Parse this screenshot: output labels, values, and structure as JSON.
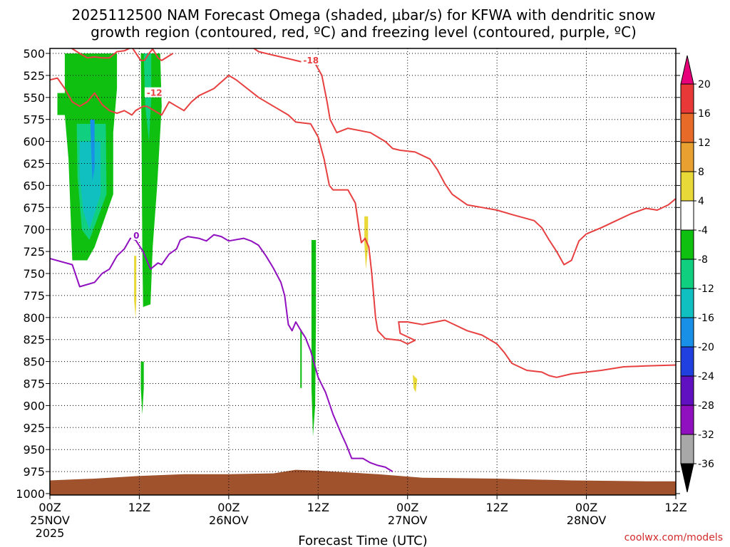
{
  "chart_data": {
    "type": "time-height",
    "title_lines": [
      "2025112500 NAM Forecast Omega (shaded, μbar/s) for KFWA with dendritic snow",
      "growth region (contoured, red, ºC) and freezing level (contoured, purple, ºC)"
    ],
    "xlabel": "Forecast Time (UTC)",
    "ylabel": "",
    "credit": "coolwx.com/models",
    "x_range_hours": [
      0,
      84
    ],
    "y_range_hpa": [
      500,
      1000
    ],
    "y_ticks": [
      500,
      525,
      550,
      575,
      600,
      625,
      650,
      675,
      700,
      725,
      750,
      775,
      800,
      825,
      850,
      875,
      900,
      925,
      950,
      975,
      1000
    ],
    "x_ticks": [
      {
        "hour": 0,
        "line1": "00Z",
        "line2": "25NOV",
        "line3": "2025"
      },
      {
        "hour": 12,
        "line1": "12Z",
        "line2": "",
        "line3": ""
      },
      {
        "hour": 24,
        "line1": "00Z",
        "line2": "26NOV",
        "line3": ""
      },
      {
        "hour": 36,
        "line1": "12Z",
        "line2": "",
        "line3": ""
      },
      {
        "hour": 48,
        "line1": "00Z",
        "line2": "27NOV",
        "line3": ""
      },
      {
        "hour": 60,
        "line1": "12Z",
        "line2": "",
        "line3": ""
      },
      {
        "hour": 72,
        "line1": "00Z",
        "line2": "28NOV",
        "line3": ""
      },
      {
        "hour": 84,
        "line1": "12Z",
        "line2": "",
        "line3": ""
      }
    ],
    "colorbar": {
      "label_values": [
        20,
        16,
        12,
        8,
        4,
        -4,
        -8,
        -12,
        -16,
        -20,
        -24,
        -28,
        -32,
        -36
      ],
      "colors": [
        "#e8007a",
        "#e83838",
        "#e86a28",
        "#e8a030",
        "#e8d838",
        "#ffffff",
        "#10c010",
        "#10d080",
        "#10c0c0",
        "#1890e8",
        "#2040e0",
        "#6010c0",
        "#9010c0",
        "#a8a8a8",
        "#000000"
      ]
    },
    "omega_shading": [
      {
        "level": -4,
        "color": "#10c010",
        "polygon": [
          [
            2.0,
            500
          ],
          [
            9.0,
            500
          ],
          [
            9.0,
            540
          ],
          [
            8.5,
            590
          ],
          [
            8.5,
            660
          ],
          [
            6.0,
            720
          ],
          [
            5.0,
            735
          ],
          [
            3.0,
            735
          ],
          [
            2.5,
            620
          ],
          [
            2.0,
            570
          ],
          [
            1.0,
            570
          ],
          [
            1.0,
            545
          ],
          [
            2.0,
            545
          ]
        ]
      },
      {
        "level": -8,
        "color": "#10d080",
        "polygon": [
          [
            3.6,
            580
          ],
          [
            7.5,
            580
          ],
          [
            7.6,
            660
          ],
          [
            5.3,
            712
          ],
          [
            4.3,
            700
          ],
          [
            3.7,
            640
          ]
        ]
      },
      {
        "level": -12,
        "color": "#10c0c0",
        "polygon": [
          [
            4.0,
            600
          ],
          [
            6.8,
            600
          ],
          [
            6.8,
            660
          ],
          [
            5.3,
            700
          ],
          [
            4.5,
            680
          ],
          [
            4.0,
            640
          ]
        ]
      },
      {
        "level": -16,
        "color": "#1890e8",
        "polygon": [
          [
            5.4,
            575
          ],
          [
            6.0,
            575
          ],
          [
            6.0,
            630
          ],
          [
            5.7,
            645
          ]
        ]
      },
      {
        "level": -4,
        "color": "#10c010",
        "polygon": [
          [
            12.2,
            500
          ],
          [
            14.8,
            500
          ],
          [
            15.0,
            560
          ],
          [
            14.4,
            650
          ],
          [
            13.8,
            720
          ],
          [
            13.5,
            785
          ],
          [
            12.5,
            788
          ],
          [
            12.4,
            720
          ],
          [
            12.3,
            600
          ]
        ]
      },
      {
        "level": -8,
        "color": "#10d080",
        "polygon": [
          [
            12.6,
            500
          ],
          [
            13.6,
            500
          ],
          [
            13.6,
            550
          ],
          [
            13.3,
            600
          ],
          [
            12.8,
            560
          ]
        ]
      },
      {
        "level": -4,
        "color": "#10c010",
        "polygon": [
          [
            12.2,
            850
          ],
          [
            12.6,
            850
          ],
          [
            12.6,
            880
          ],
          [
            12.4,
            910
          ],
          [
            12.2,
            880
          ]
        ]
      },
      {
        "level": -4,
        "color": "#10c010",
        "polygon": [
          [
            33.6,
            814
          ],
          [
            33.8,
            814
          ],
          [
            33.8,
            880
          ],
          [
            33.6,
            880
          ]
        ]
      },
      {
        "level": -4,
        "color": "#10c010",
        "polygon": [
          [
            35.1,
            712
          ],
          [
            35.7,
            712
          ],
          [
            35.7,
            800
          ],
          [
            35.6,
            900
          ],
          [
            35.3,
            935
          ],
          [
            35.1,
            880
          ]
        ]
      },
      {
        "level": 4,
        "color": "#e8d838",
        "polygon": [
          [
            11.3,
            730
          ],
          [
            11.6,
            730
          ],
          [
            11.6,
            780
          ],
          [
            11.5,
            800
          ],
          [
            11.3,
            780
          ]
        ]
      },
      {
        "level": 4,
        "color": "#e8d838",
        "polygon": [
          [
            42.2,
            685
          ],
          [
            42.7,
            685
          ],
          [
            42.7,
            720
          ],
          [
            42.4,
            745
          ],
          [
            42.2,
            715
          ]
        ]
      },
      {
        "level": 4,
        "color": "#e8d838",
        "polygon": [
          [
            48.7,
            865
          ],
          [
            49.3,
            870
          ],
          [
            49.1,
            885
          ],
          [
            48.8,
            880
          ]
        ]
      }
    ],
    "terrain": {
      "color": "#a0522d",
      "points": [
        [
          0,
          985
        ],
        [
          6,
          983
        ],
        [
          12,
          980
        ],
        [
          18,
          978
        ],
        [
          24,
          978
        ],
        [
          30,
          977
        ],
        [
          33,
          973
        ],
        [
          36,
          974
        ],
        [
          40,
          976
        ],
        [
          44,
          978
        ],
        [
          50,
          982
        ],
        [
          60,
          983
        ],
        [
          70,
          985
        ],
        [
          80,
          986
        ],
        [
          84,
          986
        ]
      ]
    },
    "contours": [
      {
        "label": "-12",
        "color": "#e84040",
        "label_at": [
          13.0,
          545
        ],
        "points": [
          [
            0,
            530
          ],
          [
            1,
            528
          ],
          [
            2,
            540
          ],
          [
            3,
            555
          ],
          [
            4,
            560
          ],
          [
            5,
            555
          ],
          [
            6,
            545
          ],
          [
            7,
            558
          ],
          [
            8,
            565
          ],
          [
            9,
            568
          ],
          [
            10,
            565
          ],
          [
            11,
            570
          ],
          [
            11.5,
            565
          ],
          [
            12.5,
            560
          ],
          [
            13,
            560
          ],
          [
            14,
            565
          ],
          [
            15,
            570
          ],
          [
            16,
            555
          ],
          [
            17,
            560
          ],
          [
            18,
            565
          ],
          [
            19,
            555
          ],
          [
            20,
            548
          ],
          [
            22,
            540
          ],
          [
            24,
            525
          ],
          [
            25,
            530
          ],
          [
            28,
            550
          ],
          [
            30,
            560
          ],
          [
            32,
            570
          ],
          [
            33,
            578
          ],
          [
            35,
            580
          ],
          [
            36,
            595
          ],
          [
            36.8,
            620
          ],
          [
            37.5,
            650
          ],
          [
            38,
            655
          ],
          [
            40,
            655
          ],
          [
            41,
            670
          ],
          [
            41.5,
            700
          ],
          [
            41.8,
            715
          ],
          [
            42.3,
            710
          ],
          [
            42.8,
            720
          ],
          [
            43.2,
            750
          ],
          [
            43.5,
            780
          ],
          [
            43.7,
            800
          ],
          [
            44,
            815
          ],
          [
            45,
            824
          ],
          [
            47,
            826
          ],
          [
            48,
            830
          ],
          [
            49,
            826
          ],
          [
            47,
            818
          ],
          [
            46.8,
            805
          ],
          [
            48,
            805
          ],
          [
            50,
            808
          ],
          [
            53,
            803
          ],
          [
            56,
            815
          ],
          [
            58,
            820
          ],
          [
            60,
            830
          ],
          [
            61,
            840
          ],
          [
            62,
            852
          ],
          [
            64,
            860
          ],
          [
            66,
            862
          ],
          [
            67,
            866
          ],
          [
            68,
            868
          ],
          [
            70,
            864
          ],
          [
            72,
            862
          ],
          [
            74,
            860
          ],
          [
            77,
            856
          ],
          [
            80,
            855
          ],
          [
            84,
            854
          ]
        ]
      },
      {
        "label": "-18",
        "color": "#e84040",
        "label_at": [
          34.0,
          508
        ],
        "points": [
          [
            24,
            492
          ],
          [
            27,
            492
          ],
          [
            28,
            498
          ],
          [
            30,
            502
          ],
          [
            32,
            506
          ],
          [
            33,
            508
          ],
          [
            34,
            510
          ],
          [
            35.5,
            510
          ],
          [
            36.5,
            525
          ],
          [
            37.2,
            555
          ],
          [
            37.6,
            575
          ],
          [
            38.5,
            590
          ],
          [
            40,
            585
          ],
          [
            43,
            590
          ],
          [
            45,
            600
          ],
          [
            46,
            608
          ],
          [
            47,
            610
          ],
          [
            49,
            612
          ],
          [
            51,
            620
          ],
          [
            52,
            632
          ],
          [
            53,
            648
          ],
          [
            54,
            660
          ],
          [
            56,
            672
          ],
          [
            58,
            675
          ],
          [
            60,
            678
          ],
          [
            62,
            683
          ],
          [
            65,
            690
          ],
          [
            66,
            698
          ],
          [
            67,
            712
          ],
          [
            68,
            725
          ],
          [
            69,
            740
          ],
          [
            70,
            735
          ],
          [
            71,
            713
          ],
          [
            72,
            705
          ],
          [
            74,
            698
          ],
          [
            76,
            690
          ],
          [
            78,
            682
          ],
          [
            80,
            676
          ],
          [
            81.5,
            678
          ],
          [
            83,
            672
          ],
          [
            84,
            665
          ]
        ]
      },
      {
        "label": "",
        "color": "#e84040",
        "label_at": null,
        "points": [
          [
            7,
            505
          ],
          [
            8,
            505
          ],
          [
            9,
            498
          ],
          [
            10,
            497
          ],
          [
            11,
            493
          ],
          [
            11.8,
            503
          ],
          [
            12.2,
            508
          ],
          [
            12.7,
            508
          ],
          [
            13.3,
            500
          ],
          [
            13.8,
            495
          ],
          [
            14.5,
            505
          ],
          [
            15,
            508
          ],
          [
            16.5,
            500
          ]
        ]
      },
      {
        "label": "",
        "color": "#e84040",
        "label_at": null,
        "points": [
          [
            2.5,
            492
          ],
          [
            4,
            500
          ],
          [
            5,
            505
          ],
          [
            6,
            504
          ],
          [
            7,
            505
          ]
        ]
      },
      {
        "label": "0",
        "color": "#9010c0",
        "label_at": [
          11.2,
          707
        ],
        "points": [
          [
            0,
            733
          ],
          [
            3,
            740
          ],
          [
            4,
            765
          ],
          [
            6,
            760
          ],
          [
            7,
            750
          ],
          [
            8,
            745
          ],
          [
            9,
            730
          ],
          [
            10,
            722
          ],
          [
            10.8,
            710
          ],
          [
            11.5,
            712
          ],
          [
            12.5,
            725
          ],
          [
            13.5,
            745
          ],
          [
            14.5,
            738
          ],
          [
            15,
            740
          ],
          [
            16,
            728
          ],
          [
            17,
            722
          ],
          [
            17.5,
            712
          ],
          [
            18.5,
            708
          ],
          [
            20,
            710
          ],
          [
            21,
            713
          ],
          [
            22,
            706
          ],
          [
            23,
            708
          ],
          [
            24,
            713
          ],
          [
            26,
            710
          ],
          [
            27,
            713
          ],
          [
            28,
            718
          ],
          [
            29,
            730
          ],
          [
            30,
            744
          ],
          [
            31,
            760
          ],
          [
            31.5,
            775
          ],
          [
            31.8,
            795
          ],
          [
            32,
            808
          ],
          [
            32.5,
            815
          ],
          [
            33,
            805
          ],
          [
            33.7,
            815
          ],
          [
            34.3,
            823
          ],
          [
            35,
            838
          ],
          [
            36,
            868
          ],
          [
            37,
            885
          ],
          [
            38,
            910
          ],
          [
            39,
            930
          ],
          [
            39.8,
            945
          ],
          [
            40.5,
            960
          ],
          [
            42,
            960
          ],
          [
            43,
            965
          ],
          [
            44,
            968
          ],
          [
            45,
            970
          ],
          [
            46,
            975
          ]
        ]
      }
    ]
  }
}
